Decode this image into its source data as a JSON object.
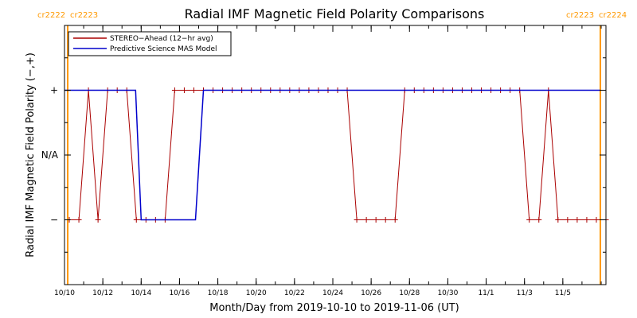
{
  "chart_data": {
    "type": "line",
    "title": "Radial IMF Magnetic Field Polarity Comparisons",
    "xlabel": "Month/Day from 2019-10-10 to 2019-11-06 (UT)",
    "ylabel": "Radial IMF Magnetic Field Polarity (−,+)",
    "xlim": [
      "2019-10-10T00",
      "2019-11-07T06"
    ],
    "x_ticks": [
      "10/10",
      "10/12",
      "10/14",
      "10/16",
      "10/18",
      "10/20",
      "10/22",
      "10/24",
      "10/26",
      "10/28",
      "10/30",
      "11/1",
      "11/3",
      "11/5"
    ],
    "y_categories": [
      "−",
      "N/A",
      "+"
    ],
    "y_ticks": [
      {
        "value": -1,
        "label": "−"
      },
      {
        "value": 0,
        "label": "N/A"
      },
      {
        "value": 1,
        "label": "+"
      }
    ],
    "ylim": [
      -2,
      2
    ],
    "carrington_markers": [
      {
        "x": "2019-10-10T04",
        "color": "#ff9900",
        "labels": [
          "cr2222",
          "cr2223"
        ],
        "label_side": "right"
      },
      {
        "x": "2019-11-06T23",
        "color": "#ff9900",
        "labels": [
          "cr2223",
          "cr2224"
        ],
        "label_side": "left"
      }
    ],
    "legend": {
      "placement": "top-left"
    },
    "series": [
      {
        "name": "STEREO−Ahead (12−hr avg)",
        "color": "#aa0000",
        "markers": "plus",
        "points": [
          [
            "2019-10-10T06",
            -1
          ],
          [
            "2019-10-10T18",
            -1
          ],
          [
            "2019-10-11T06",
            1
          ],
          [
            "2019-10-11T18",
            -1
          ],
          [
            "2019-10-12T06",
            1
          ],
          [
            "2019-10-12T18",
            1
          ],
          [
            "2019-10-13T06",
            1
          ],
          [
            "2019-10-13T18",
            -1
          ],
          [
            "2019-10-14T06",
            -1
          ],
          [
            "2019-10-14T18",
            -1
          ],
          [
            "2019-10-15T06",
            -1
          ],
          [
            "2019-10-15T18",
            1
          ],
          [
            "2019-10-16T06",
            1
          ],
          [
            "2019-10-16T18",
            1
          ],
          [
            "2019-10-17T06",
            1
          ],
          [
            "2019-10-17T18",
            1
          ],
          [
            "2019-10-18T06",
            1
          ],
          [
            "2019-10-18T18",
            1
          ],
          [
            "2019-10-19T06",
            1
          ],
          [
            "2019-10-19T18",
            1
          ],
          [
            "2019-10-20T06",
            1
          ],
          [
            "2019-10-20T18",
            1
          ],
          [
            "2019-10-21T06",
            1
          ],
          [
            "2019-10-21T18",
            1
          ],
          [
            "2019-10-22T06",
            1
          ],
          [
            "2019-10-22T18",
            1
          ],
          [
            "2019-10-23T06",
            1
          ],
          [
            "2019-10-23T18",
            1
          ],
          [
            "2019-10-24T06",
            1
          ],
          [
            "2019-10-24T18",
            1
          ],
          [
            "2019-10-25T06",
            -1
          ],
          [
            "2019-10-25T18",
            -1
          ],
          [
            "2019-10-26T06",
            -1
          ],
          [
            "2019-10-26T18",
            -1
          ],
          [
            "2019-10-27T06",
            -1
          ],
          [
            "2019-10-27T18",
            1
          ],
          [
            "2019-10-28T06",
            1
          ],
          [
            "2019-10-28T18",
            1
          ],
          [
            "2019-10-29T06",
            1
          ],
          [
            "2019-10-29T18",
            1
          ],
          [
            "2019-10-30T06",
            1
          ],
          [
            "2019-10-30T18",
            1
          ],
          [
            "2019-10-31T06",
            1
          ],
          [
            "2019-10-31T18",
            1
          ],
          [
            "2019-11-01T06",
            1
          ],
          [
            "2019-11-01T18",
            1
          ],
          [
            "2019-11-02T06",
            1
          ],
          [
            "2019-11-02T18",
            1
          ],
          [
            "2019-11-03T06",
            -1
          ],
          [
            "2019-11-03T18",
            -1
          ],
          [
            "2019-11-04T06",
            1
          ],
          [
            "2019-11-04T18",
            -1
          ],
          [
            "2019-11-05T06",
            -1
          ],
          [
            "2019-11-05T18",
            -1
          ],
          [
            "2019-11-06T06",
            -1
          ],
          [
            "2019-11-06T18",
            -1
          ],
          [
            "2019-11-07T06",
            -1
          ]
        ]
      },
      {
        "name": "Predictive Science MAS Model",
        "color": "#0000cc",
        "markers": "none",
        "points": [
          [
            "2019-10-10T00",
            1
          ],
          [
            "2019-10-13T17",
            1
          ],
          [
            "2019-10-14T00",
            -1
          ],
          [
            "2019-10-16T20",
            -1
          ],
          [
            "2019-10-17T06",
            1
          ],
          [
            "2019-11-06T23",
            1
          ]
        ]
      }
    ]
  }
}
